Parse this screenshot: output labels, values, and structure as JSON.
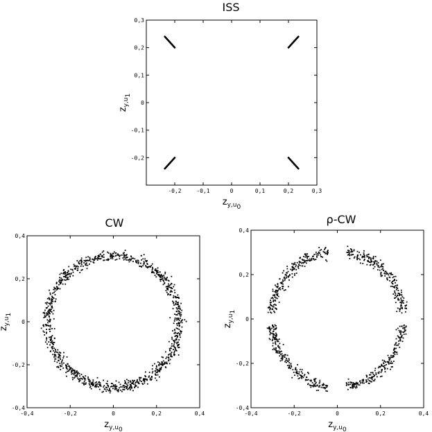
{
  "chart_data": [
    {
      "type": "scatter",
      "title": "ISS",
      "xlabel": {
        "base": "z",
        "sub": "y,u",
        "subsub": "0"
      },
      "ylabel": {
        "base": "z",
        "sub": "y,u",
        "subsub": "1"
      },
      "xlim": [
        -0.3,
        0.3
      ],
      "ylim": [
        -0.3,
        0.3
      ],
      "xticks": [
        -0.2,
        -0.1,
        0,
        0.1,
        0.2,
        0.3
      ],
      "xtick_labels": [
        "-0,2",
        "-0,1",
        "0",
        "0,1",
        "0,2",
        "0,3"
      ],
      "yticks": [
        -0.2,
        -0.1,
        0,
        0.1,
        0.2,
        0.3
      ],
      "ytick_labels": [
        "-0,2",
        "-0,1",
        "0",
        "0,1",
        "0,2",
        "0,3"
      ],
      "grid": false,
      "segments": [
        {
          "x": [
            -0.235,
            -0.2
          ],
          "y": [
            0.24,
            0.2
          ]
        },
        {
          "x": [
            0.2,
            0.235
          ],
          "y": [
            0.2,
            0.24
          ]
        },
        {
          "x": [
            -0.235,
            -0.2
          ],
          "y": [
            -0.24,
            -0.2
          ]
        },
        {
          "x": [
            0.2,
            0.235
          ],
          "y": [
            -0.2,
            -0.24
          ]
        }
      ]
    },
    {
      "type": "scatter",
      "title": "CW",
      "xlabel": {
        "base": "z",
        "sub": "y,u",
        "subsub": "0"
      },
      "ylabel": {
        "base": "z",
        "sub": "y,u",
        "subsub": "1"
      },
      "xlim": [
        -0.4,
        0.4
      ],
      "ylim": [
        -0.4,
        0.4
      ],
      "xticks": [
        -0.4,
        -0.2,
        0,
        0.2,
        0.4
      ],
      "xtick_labels": [
        "-0,4",
        "-0,2",
        "0",
        "0,2",
        "0,4"
      ],
      "yticks": [
        -0.4,
        -0.2,
        0,
        0.2,
        0.4
      ],
      "ytick_labels": [
        "-0,4",
        "-0,2",
        "0",
        "0,2",
        "0,4"
      ],
      "grid": false,
      "ring": {
        "radius": 0.305,
        "spread": 0.012,
        "arcs_deg": [
          [
            0,
            360
          ]
        ],
        "points": 1100
      }
    },
    {
      "type": "scatter",
      "title": "ρ-CW",
      "xlabel": {
        "base": "z",
        "sub": "y,u",
        "subsub": "0"
      },
      "ylabel": {
        "base": "z",
        "sub": "y,u",
        "subsub": "1"
      },
      "xlim": [
        -0.4,
        0.4
      ],
      "ylim": [
        -0.4,
        0.4
      ],
      "xticks": [
        -0.4,
        -0.2,
        0,
        0.2,
        0.4
      ],
      "xtick_labels": [
        "-0,4",
        "-0,2",
        "0",
        "0,2",
        "0,4"
      ],
      "yticks": [
        -0.4,
        -0.2,
        0,
        0.2,
        0.4
      ],
      "ytick_labels": [
        "-0,4",
        "-0,2",
        "0",
        "0,2",
        "0,4"
      ],
      "grid": false,
      "ring": {
        "radius": 0.305,
        "spread": 0.012,
        "arcs_deg": [
          [
            5,
            82
          ],
          [
            98,
            175
          ],
          [
            185,
            262
          ],
          [
            278,
            355
          ]
        ],
        "points": 900
      }
    }
  ]
}
